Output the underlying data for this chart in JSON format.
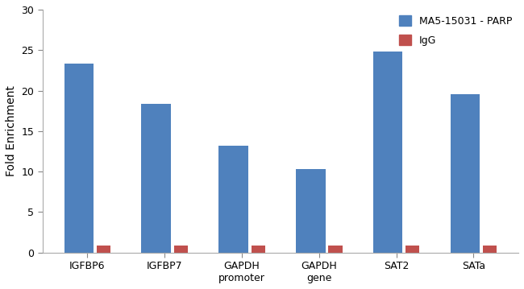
{
  "categories": [
    "IGFBP6",
    "IGFBP7",
    "GAPDH\npromoter",
    "GAPDH\ngene",
    "SAT2",
    "SATa"
  ],
  "parp_values": [
    23.3,
    18.4,
    13.2,
    10.3,
    24.8,
    19.6
  ],
  "igg_values": [
    0.85,
    0.85,
    0.85,
    0.85,
    0.85,
    0.85
  ],
  "parp_color": "#4F81BD",
  "igg_color": "#C0504D",
  "ylabel": "Fold Enrichment",
  "ylim": [
    0,
    30
  ],
  "yticks": [
    0,
    5,
    10,
    15,
    20,
    25,
    30
  ],
  "legend_parp": "MA5-15031 - PARP",
  "legend_igg": "IgG",
  "parp_bar_width": 0.38,
  "igg_bar_width": 0.18,
  "bg_color": "#FFFFFF",
  "label_fontsize": 10,
  "tick_fontsize": 9,
  "legend_fontsize": 9
}
